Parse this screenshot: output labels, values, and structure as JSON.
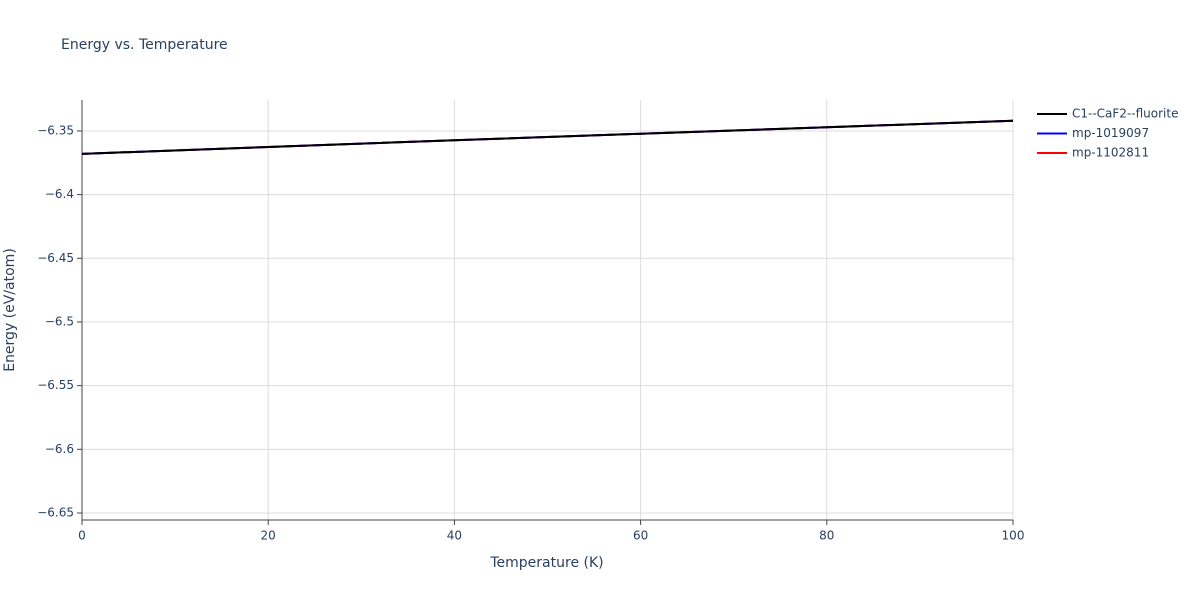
{
  "chart_data": {
    "type": "line",
    "title": "Energy vs. Temperature",
    "x_label": "Temperature (K)",
    "y_label": "Energy (eV/atom)",
    "x": [
      0,
      20,
      40,
      60,
      80,
      100
    ],
    "series": [
      {
        "name": "C1--CaF2--fluorite",
        "color": "#000000",
        "values": [
          -6.368,
          -6.3626,
          -6.3573,
          -6.3522,
          -6.3471,
          -6.342
        ]
      },
      {
        "name": "mp-1019097",
        "color": "#0000ff",
        "values": [
          -6.368,
          -6.3626,
          -6.3573,
          -6.3522,
          -6.3471,
          -6.342
        ]
      },
      {
        "name": "mp-1102811",
        "color": "#ff0000",
        "values": [
          -6.368,
          -6.3626,
          -6.3573,
          -6.3522,
          -6.3471,
          -6.342
        ]
      }
    ],
    "xlim": [
      0,
      100
    ],
    "xticks": [
      0,
      20,
      40,
      60,
      80,
      100
    ],
    "ylim": [
      -6.6555,
      -6.3257
    ],
    "yticks": [
      {
        "value": -6.35,
        "label": "−6.35"
      },
      {
        "value": -6.4,
        "label": "−6.4"
      },
      {
        "value": -6.45,
        "label": "−6.45"
      },
      {
        "value": -6.5,
        "label": "−6.5"
      },
      {
        "value": -6.55,
        "label": "−6.55"
      },
      {
        "value": -6.6,
        "label": "−6.6"
      },
      {
        "value": -6.65,
        "label": "−6.65"
      }
    ],
    "grid": true,
    "legend": "outside-right"
  }
}
